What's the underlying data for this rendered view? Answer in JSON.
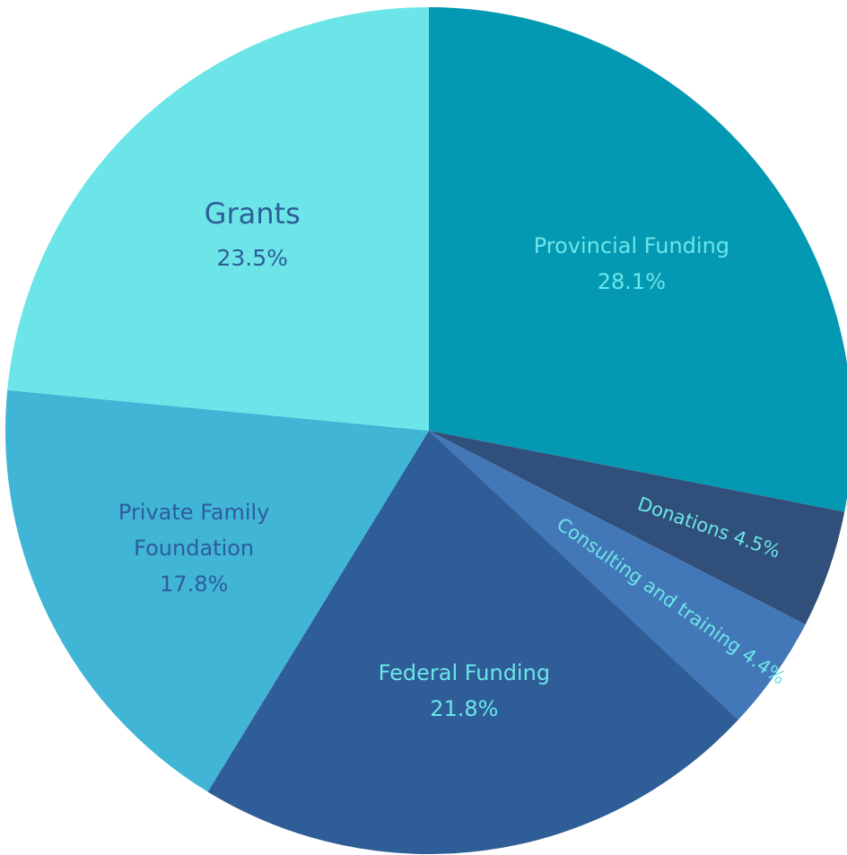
{
  "chart_data": {
    "type": "pie",
    "categories": [
      "Provincial Funding",
      "Donations",
      "Consulting and training",
      "Federal Funding",
      "Private Family Foundation",
      "Grants"
    ],
    "values": [
      28.1,
      4.5,
      4.4,
      21.8,
      17.8,
      23.5
    ],
    "value_labels": [
      "28.1%",
      "4.5%",
      "4.4%",
      "21.8%",
      "17.8%",
      "23.5%"
    ],
    "colors": [
      "#0499b3",
      "#304f7a",
      "#4277b8",
      "#2e5d97",
      "#40b5d6",
      "#6ce5e8"
    ],
    "label_colors": [
      "#6ce5e8",
      "#6ce5e8",
      "#6ce5e8",
      "#6ce5e8",
      "#2e5d97",
      "#2e5d97"
    ]
  }
}
